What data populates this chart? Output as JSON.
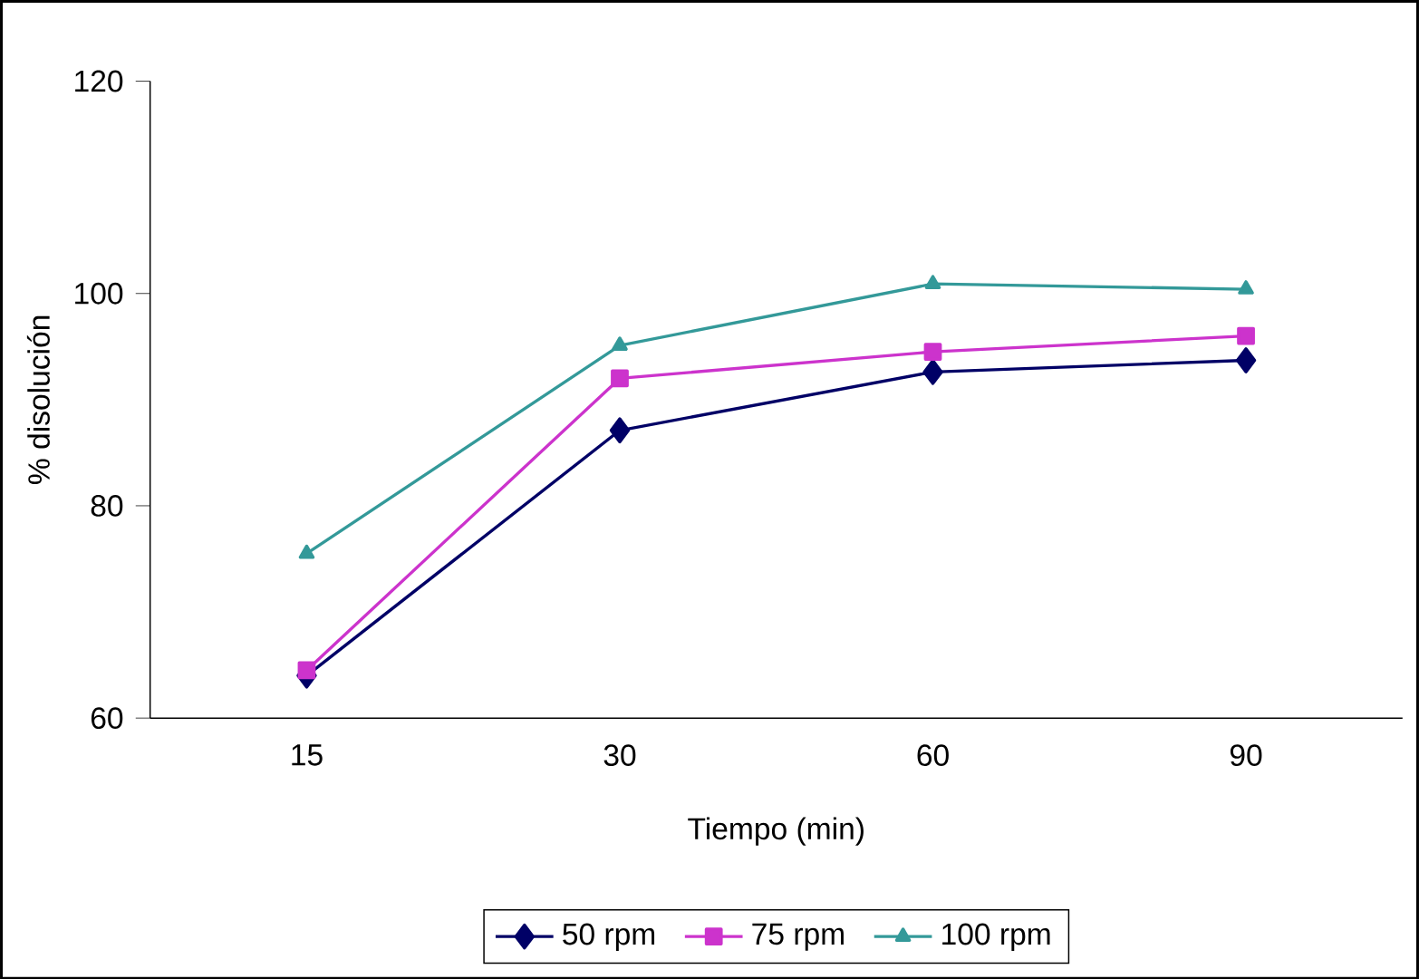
{
  "chart_data": {
    "type": "line",
    "xlabel": "Tiempo (min)",
    "ylabel": "% disolución",
    "categories": [
      "15",
      "30",
      "60",
      "90"
    ],
    "series": [
      {
        "name": "50 rpm",
        "color": "#000066",
        "marker": "diamond",
        "values": [
          64,
          87.1,
          92.6,
          93.7
        ]
      },
      {
        "name": "75 rpm",
        "color": "#cc33cc",
        "marker": "square",
        "values": [
          64.5,
          92,
          94.5,
          96
        ]
      },
      {
        "name": "100 rpm",
        "color": "#339999",
        "marker": "triangle",
        "values": [
          75.5,
          95.1,
          100.9,
          100.4
        ]
      }
    ],
    "ylim": [
      60,
      120
    ],
    "yticks": [
      60,
      80,
      100,
      120
    ],
    "grid": false,
    "legend": "bottom"
  }
}
